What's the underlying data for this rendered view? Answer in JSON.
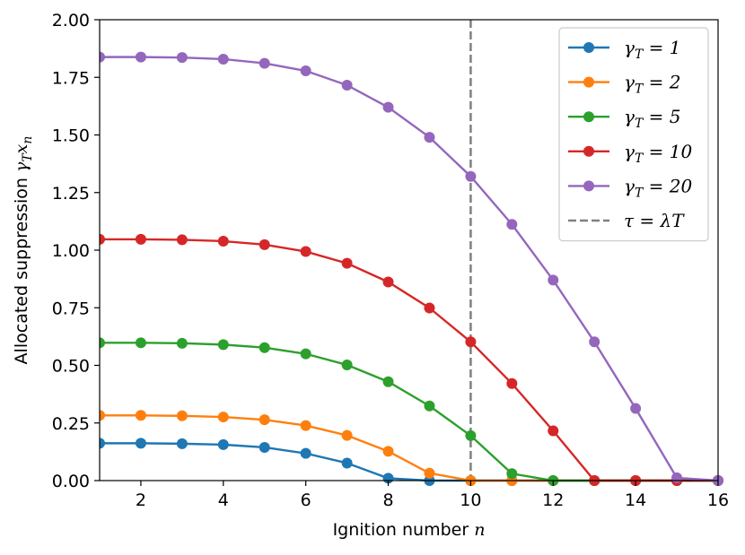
{
  "chart_data": {
    "type": "line",
    "title": "",
    "xlabel": "Ignition number n",
    "ylabel": "Allocated suppression γ_T x_n",
    "xlim": [
      1,
      16
    ],
    "ylim": [
      0,
      2.0
    ],
    "xticks": [
      2,
      4,
      6,
      8,
      10,
      12,
      14,
      16
    ],
    "xtick_labels": [
      "2",
      "4",
      "6",
      "8",
      "10",
      "12",
      "14",
      "16"
    ],
    "yticks": [
      0,
      0.25,
      0.5,
      0.75,
      1.0,
      1.25,
      1.5,
      1.75,
      2.0
    ],
    "ytick_labels": [
      "0.00",
      "0.25",
      "0.50",
      "0.75",
      "1.00",
      "1.25",
      "1.50",
      "1.75",
      "2.00"
    ],
    "grid": false,
    "legend_position": "top-right",
    "x": [
      1,
      2,
      3,
      4,
      5,
      6,
      7,
      8,
      9,
      10,
      11,
      12,
      13,
      14,
      15,
      16
    ],
    "series": [
      {
        "name": "γT = 1",
        "color": "#1f77b4",
        "values": [
          0.162,
          0.162,
          0.16,
          0.156,
          0.144,
          0.118,
          0.076,
          0.01,
          0,
          0,
          0,
          0,
          0,
          0,
          0,
          0
        ]
      },
      {
        "name": "γT = 2",
        "color": "#ff7f0e",
        "values": [
          0.283,
          0.283,
          0.281,
          0.276,
          0.264,
          0.239,
          0.196,
          0.127,
          0.032,
          0,
          0,
          0,
          0,
          0,
          0,
          0
        ]
      },
      {
        "name": "γT = 5",
        "color": "#2ca02c",
        "values": [
          0.598,
          0.598,
          0.596,
          0.59,
          0.577,
          0.55,
          0.502,
          0.429,
          0.324,
          0.195,
          0.03,
          0,
          0,
          0,
          0,
          0
        ]
      },
      {
        "name": "γT = 10",
        "color": "#d62728",
        "values": [
          1.047,
          1.047,
          1.045,
          1.039,
          1.024,
          0.994,
          0.943,
          0.862,
          0.749,
          0.602,
          0.421,
          0.216,
          0,
          0,
          0,
          0
        ]
      },
      {
        "name": "γT = 20",
        "color": "#9467bd",
        "values": [
          1.838,
          1.838,
          1.836,
          1.829,
          1.811,
          1.778,
          1.716,
          1.62,
          1.49,
          1.32,
          1.112,
          0.87,
          0.602,
          0.313,
          0.012,
          0
        ]
      }
    ],
    "reference_line": {
      "name": "τ = λT",
      "x": 10,
      "color": "#808080",
      "style": "dashed"
    }
  }
}
